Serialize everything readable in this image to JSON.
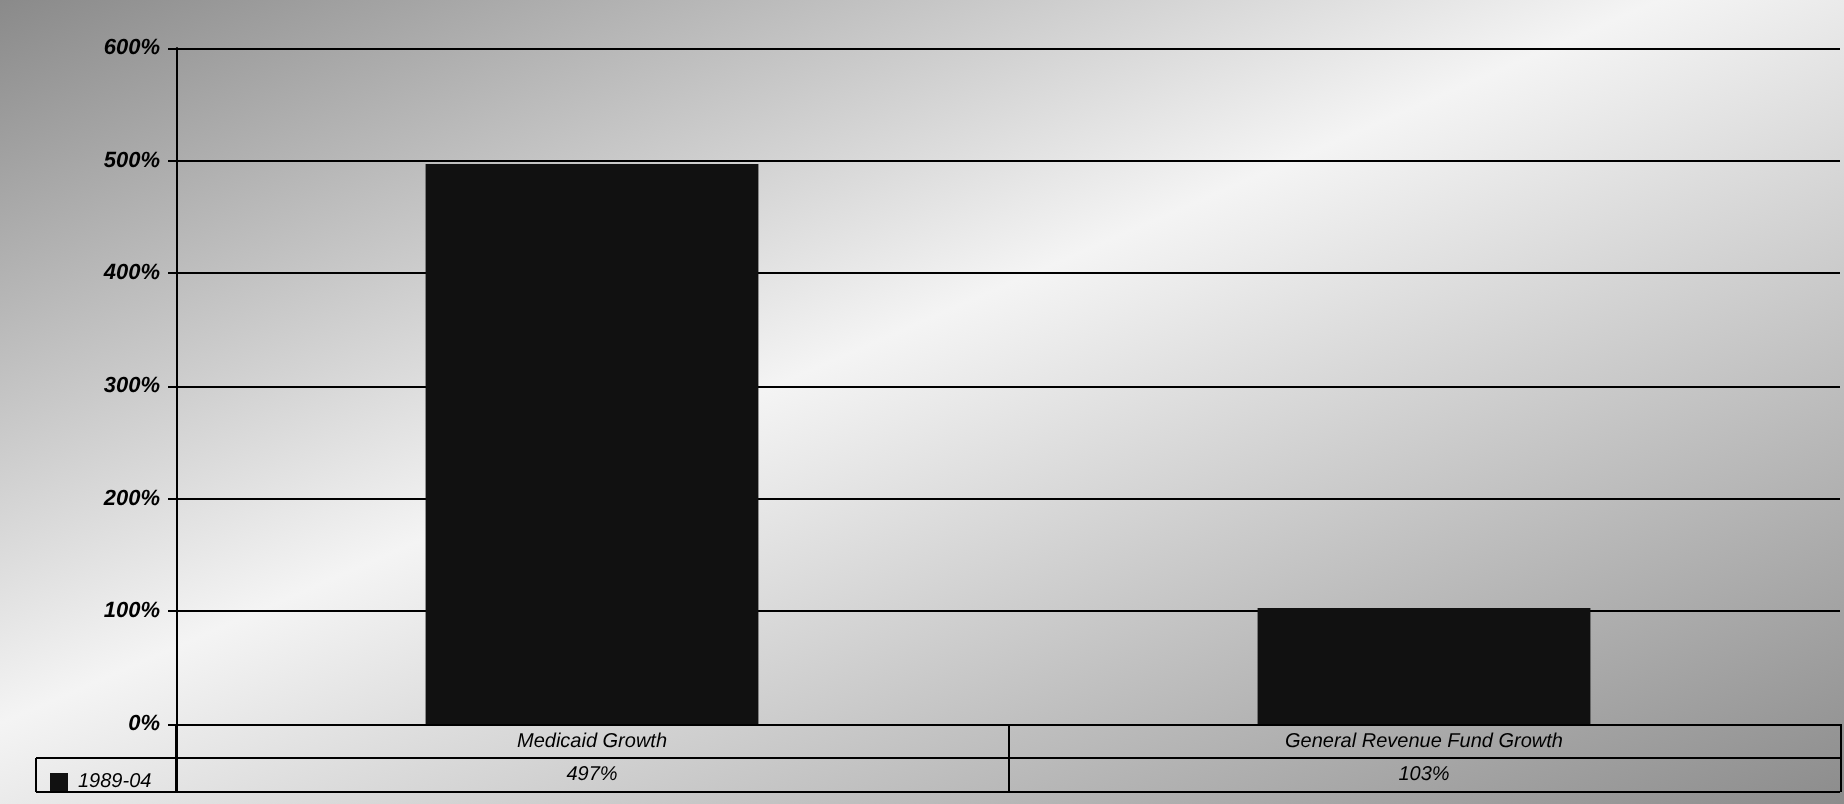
{
  "chart_data": {
    "type": "bar",
    "categories": [
      "Medicaid Growth",
      "General Revenue Fund Growth"
    ],
    "series": [
      {
        "name": "1989-04",
        "color": "#111111",
        "values": [
          497,
          103
        ],
        "value_labels": [
          "497%",
          "103%"
        ]
      }
    ],
    "ylim": [
      0,
      600
    ],
    "yticks": [
      {
        "value": 0,
        "label": "0%"
      },
      {
        "value": 100,
        "label": "100%"
      },
      {
        "value": 200,
        "label": "200%"
      },
      {
        "value": 300,
        "label": "300%"
      },
      {
        "value": 400,
        "label": "400%"
      },
      {
        "value": 500,
        "label": "500%"
      },
      {
        "value": 600,
        "label": "600%"
      }
    ],
    "grid": "y",
    "legend": "bottom left"
  }
}
